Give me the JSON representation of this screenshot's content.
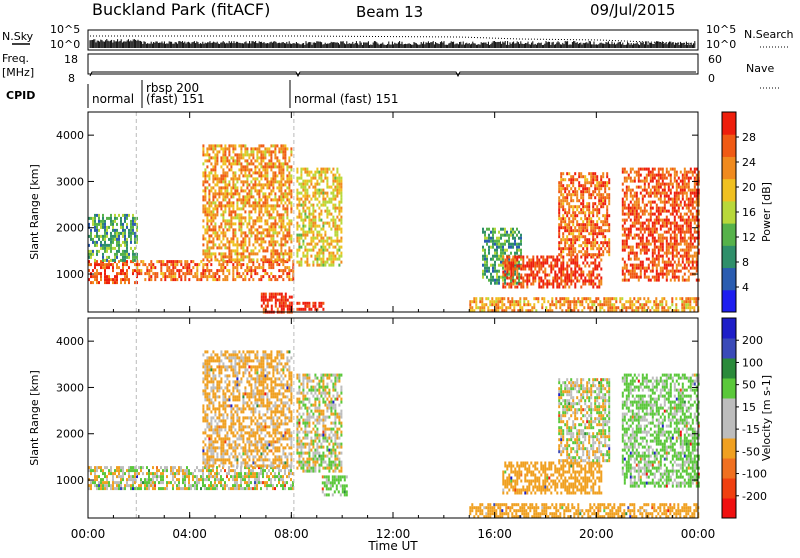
{
  "header": {
    "station": "Buckland Park (fitACF)",
    "beam": "Beam 13",
    "date": "09/Jul/2015"
  },
  "param_panel": {
    "nsky_label": "N.Sky",
    "nsky_ticks": [
      "10^5",
      "10^0"
    ],
    "nsearch_label": "N.Search",
    "nsearch_ticks": [
      "10^5",
      "10^0"
    ],
    "freq_label": "Freq.",
    "freq_unit": "[MHz]",
    "freq_ticks": [
      "18",
      "8"
    ],
    "nave_label": "Nave",
    "nave_ticks": [
      "60",
      "0"
    ],
    "cpid_label": "CPID",
    "cpid_segments": [
      "normal",
      "rbsp 200",
      "(fast) 151",
      "normal (fast) 151"
    ]
  },
  "x_axis": {
    "label": "Time UT",
    "ticks": [
      "00:00",
      "04:00",
      "08:00",
      "12:00",
      "16:00",
      "20:00",
      "00:00"
    ]
  },
  "colors": {
    "power_scale": [
      "#1e1ef0",
      "#2a5cb0",
      "#2f8f6a",
      "#56b24a",
      "#b8d83a",
      "#f0c020",
      "#f08a1e",
      "#f05a14",
      "#ee1e0c"
    ],
    "velocity_scale": [
      "#1e1ec8",
      "#3a4ab8",
      "#2a8a3a",
      "#5ac83a",
      "#bdbdbd",
      "#bdbdbd",
      "#f0a020",
      "#f07020",
      "#f04010",
      "#f01010"
    ]
  },
  "chart_data": [
    {
      "type": "heatmap",
      "name": "Power panel",
      "ylabel": "Slant Range [km]",
      "yticks": [
        "1000",
        "2000",
        "3000",
        "4000"
      ],
      "ylim": [
        180,
        4500
      ],
      "xlim_hours": [
        0,
        24
      ],
      "colorbar": {
        "label": "Power [dB]",
        "ticks": [
          "4",
          "8",
          "12",
          "16",
          "20",
          "24",
          "28"
        ],
        "range": [
          0,
          32
        ]
      },
      "regions": [
        {
          "t": [
            0.0,
            1.9
          ],
          "r": [
            800,
            1300
          ],
          "level": 0.85
        },
        {
          "t": [
            0.0,
            1.9
          ],
          "r": [
            1300,
            2300
          ],
          "level": 0.35
        },
        {
          "t": [
            1.9,
            8.1
          ],
          "r": [
            850,
            1300
          ],
          "level": 0.8
        },
        {
          "t": [
            4.5,
            8.0
          ],
          "r": [
            1300,
            3800
          ],
          "level": 0.7
        },
        {
          "t": [
            6.8,
            8.0
          ],
          "r": [
            200,
            600
          ],
          "level": 0.95
        },
        {
          "t": [
            8.2,
            10.0
          ],
          "r": [
            1200,
            3300
          ],
          "level": 0.6
        },
        {
          "t": [
            8.2,
            9.3
          ],
          "r": [
            250,
            400
          ],
          "level": 0.95
        },
        {
          "t": [
            15.5,
            17.0
          ],
          "r": [
            800,
            2000
          ],
          "level": 0.35
        },
        {
          "t": [
            16.3,
            20.2
          ],
          "r": [
            750,
            1400
          ],
          "level": 0.9
        },
        {
          "t": [
            18.5,
            20.5
          ],
          "r": [
            1400,
            3200
          ],
          "level": 0.8
        },
        {
          "t": [
            21.0,
            24.0
          ],
          "r": [
            900,
            3300
          ],
          "level": 0.85
        },
        {
          "t": [
            15.0,
            24.0
          ],
          "r": [
            200,
            500
          ],
          "level": 0.7
        }
      ]
    },
    {
      "type": "heatmap",
      "name": "Velocity panel",
      "ylabel": "Slant Range [km]",
      "yticks": [
        "1000",
        "2000",
        "3000",
        "4000"
      ],
      "ylim": [
        180,
        4500
      ],
      "xlim_hours": [
        0,
        24
      ],
      "colorbar": {
        "label": "Velocity [m s-1]",
        "ticks": [
          "200",
          "100",
          "50",
          "15",
          "-15",
          "-50",
          "-100",
          "-200"
        ],
        "range": [
          -250,
          250
        ]
      },
      "regions": [
        {
          "t": [
            0.0,
            8.1
          ],
          "r": [
            800,
            1300
          ],
          "value": 0
        },
        {
          "t": [
            4.5,
            8.0
          ],
          "r": [
            1300,
            3800
          ],
          "value": -30
        },
        {
          "t": [
            8.2,
            10.0
          ],
          "r": [
            1200,
            3300
          ],
          "value": 0
        },
        {
          "t": [
            9.2,
            10.2
          ],
          "r": [
            700,
            1100
          ],
          "value": 40
        },
        {
          "t": [
            16.3,
            20.2
          ],
          "r": [
            750,
            1400
          ],
          "value": -60
        },
        {
          "t": [
            18.5,
            20.5
          ],
          "r": [
            1400,
            3200
          ],
          "value": 0
        },
        {
          "t": [
            21.0,
            24.0
          ],
          "r": [
            900,
            3300
          ],
          "value": 30
        },
        {
          "t": [
            15.0,
            24.0
          ],
          "r": [
            200,
            500
          ],
          "value": -60
        }
      ]
    }
  ]
}
